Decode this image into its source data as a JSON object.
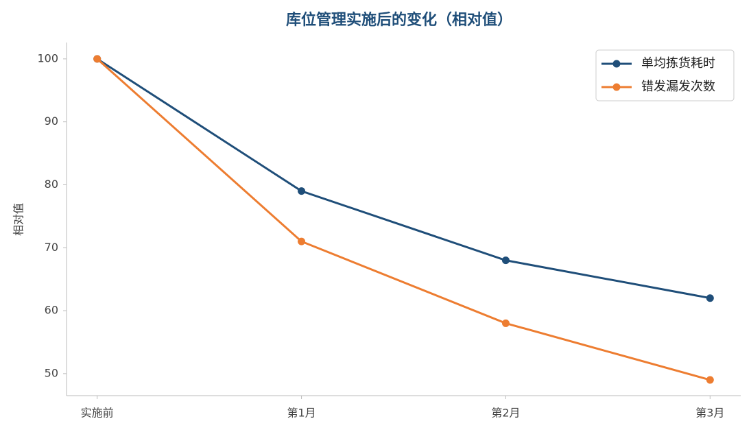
{
  "chart_data": {
    "type": "line",
    "title": "库位管理实施后的变化（相对值）",
    "y_label": "相对值",
    "categories": [
      "实施前",
      "第1月",
      "第2月",
      "第3月"
    ],
    "series": [
      {
        "name": "单均拣货耗时",
        "color": "#1f4e79",
        "values": [
          100,
          79,
          68,
          62
        ]
      },
      {
        "name": "错发漏发次数",
        "color": "#ed7d31",
        "values": [
          100,
          71,
          58,
          49
        ]
      }
    ],
    "ylim": [
      46.5,
      102.6
    ],
    "yticks": [
      50,
      60,
      70,
      80,
      90,
      100
    ],
    "grid": false,
    "legend": "upper right"
  }
}
